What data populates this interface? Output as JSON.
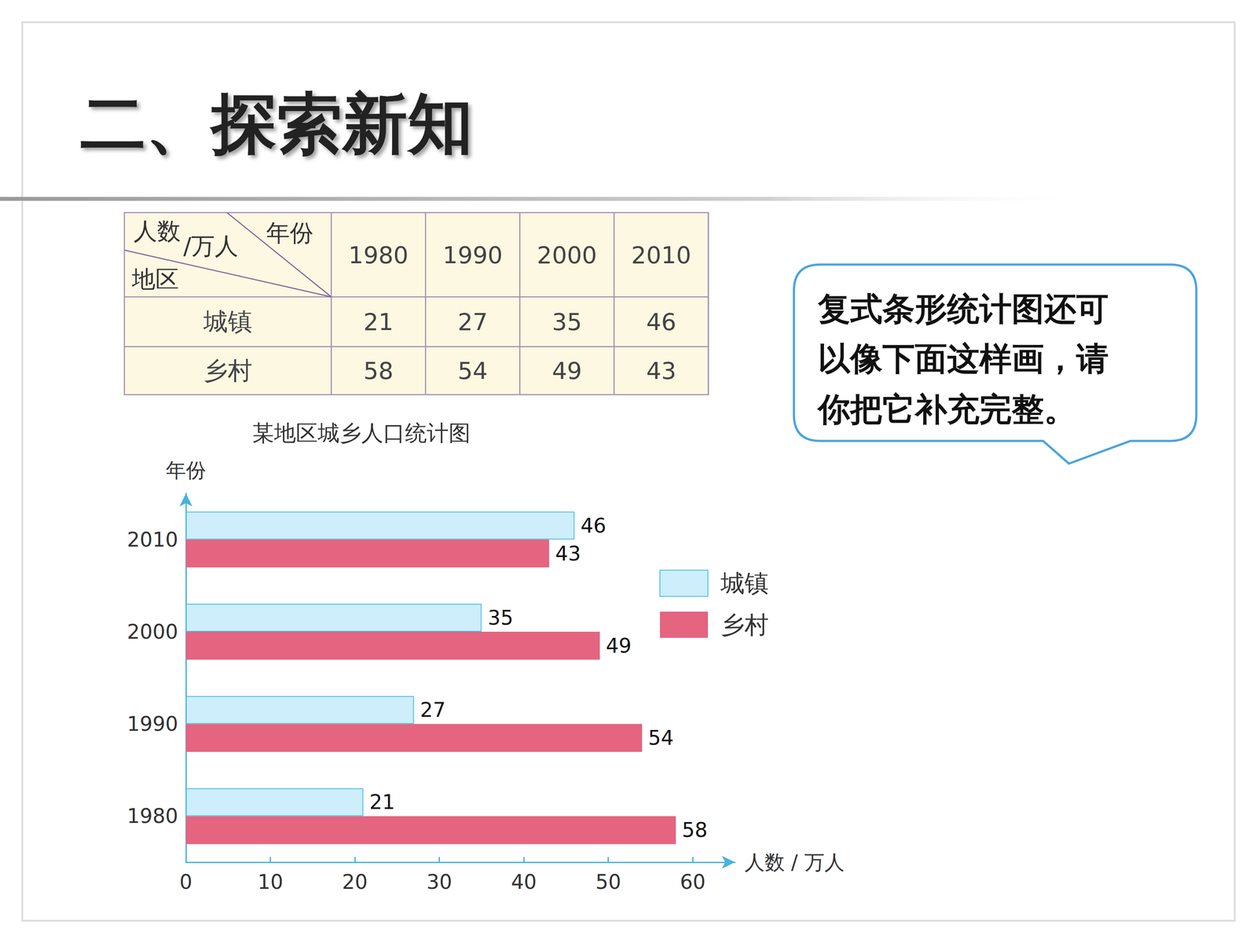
{
  "header": {
    "title": "二、探索新知"
  },
  "table": {
    "corner": {
      "top_left": "人数/万人",
      "top_right": "年份",
      "bottom_left": "地区"
    },
    "columns": [
      "1980",
      "1990",
      "2000",
      "2010"
    ],
    "rows": [
      {
        "label": "城镇",
        "values": [
          21,
          27,
          35,
          46
        ]
      },
      {
        "label": "乡村",
        "values": [
          58,
          54,
          49,
          43
        ]
      }
    ]
  },
  "bubble": {
    "lines": [
      "复式条形统计图还可",
      "以像下面这样画，请",
      "你把它补充完整。"
    ]
  },
  "chart_data": {
    "type": "bar",
    "title": "某地区城乡人口统计图",
    "orientation": "horizontal",
    "categories": [
      "1980",
      "1990",
      "2000",
      "2010"
    ],
    "series": [
      {
        "name": "城镇",
        "color": "#cdeefa",
        "values": [
          21,
          27,
          35,
          46
        ]
      },
      {
        "name": "乡村",
        "color": "#e5647f",
        "values": [
          58,
          54,
          49,
          43
        ]
      }
    ],
    "xlabel": "人数 / 万人",
    "ylabel": "年份",
    "xlim": [
      0,
      65
    ],
    "xticks": [
      0,
      10,
      20,
      30,
      40,
      50,
      60
    ],
    "legend": "right",
    "data_labels": true,
    "grid": false
  }
}
